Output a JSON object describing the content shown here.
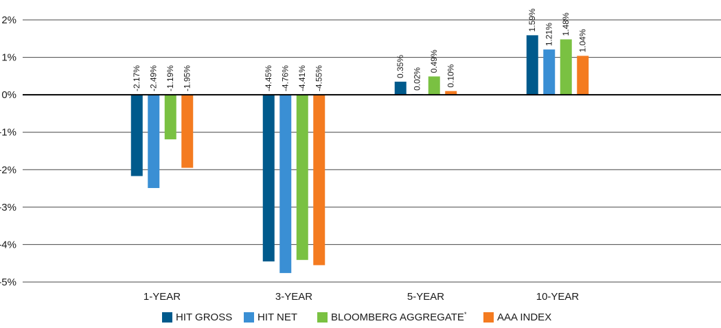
{
  "chart_data": {
    "type": "bar",
    "categories": [
      "1-YEAR",
      "3-YEAR",
      "5-YEAR",
      "10-YEAR"
    ],
    "series": [
      {
        "name": "HIT GROSS",
        "color": "#005a8c",
        "values": [
          -2.17,
          -4.45,
          0.35,
          1.59
        ],
        "labels": [
          "-2.17%",
          "-4.45%",
          "0.35%",
          "1.59%"
        ]
      },
      {
        "name": "HIT NET",
        "color": "#3a8fd4",
        "values": [
          -2.49,
          -4.76,
          0.02,
          1.21
        ],
        "labels": [
          "-2.49%",
          "-4.76%",
          "0.02%",
          "1.21%"
        ]
      },
      {
        "name": "BLOOMBERG AGGREGATE",
        "superscript": "*",
        "color": "#7ac142",
        "values": [
          -1.19,
          -4.41,
          0.49,
          1.48
        ],
        "labels": [
          "-1.19%",
          "-4.41%",
          "0.49%",
          "1.48%"
        ]
      },
      {
        "name": "AAA INDEX",
        "color": "#f47b20",
        "values": [
          -1.95,
          -4.55,
          0.1,
          1.04
        ],
        "labels": [
          "-1.95%",
          "-4.55%",
          "0.10%",
          "1.04%"
        ]
      }
    ],
    "ylim": [
      -5,
      2
    ],
    "yticks": [
      2,
      1,
      0,
      -1,
      -2,
      -3,
      -4,
      -5
    ],
    "ytick_labels": [
      "2%",
      "1%",
      "0%",
      "-1%",
      "-2%",
      "-3%",
      "-4%",
      "-5%"
    ],
    "grid": true,
    "legend_position": "bottom-center",
    "title": "",
    "xlabel": "",
    "ylabel": ""
  }
}
